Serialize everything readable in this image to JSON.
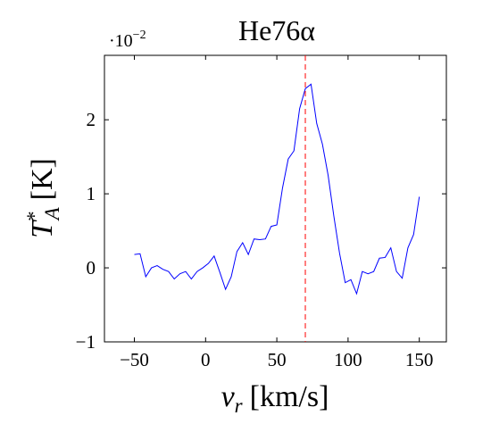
{
  "chart_data": {
    "type": "line",
    "title": "He76α",
    "x_label": {
      "base": "v",
      "sub": "r",
      "unit": "[km/s]"
    },
    "y_label": {
      "base": "T",
      "sup": "*",
      "sub": "A",
      "unit": "[K]"
    },
    "y_scale_label": {
      "base": "·10",
      "sup": "−2"
    },
    "x": [
      -50,
      -46,
      -42,
      -38,
      -34,
      -30,
      -26,
      -22,
      -18,
      -14,
      -10,
      -6,
      -2,
      2,
      6,
      10,
      14,
      18,
      22,
      26,
      30,
      34,
      38,
      42,
      46,
      50,
      54,
      58,
      62,
      66,
      70,
      74,
      78,
      82,
      86,
      90,
      94,
      98,
      102,
      106,
      110,
      114,
      118,
      122,
      126,
      130,
      134,
      138,
      142,
      146,
      150
    ],
    "series": [
      {
        "name": "He76α",
        "color": "#0000ff",
        "values": [
          0.18,
          0.19,
          -0.12,
          0,
          0.03,
          -0.02,
          -0.05,
          -0.15,
          -0.08,
          -0.05,
          -0.15,
          -0.05,
          0,
          0.06,
          0.16,
          -0.06,
          -0.29,
          -0.12,
          0.22,
          0.34,
          0.18,
          0.39,
          0.38,
          0.39,
          0.56,
          0.58,
          1.08,
          1.47,
          1.58,
          2.15,
          2.42,
          2.48,
          1.95,
          1.67,
          1.25,
          0.7,
          0.2,
          -0.2,
          -0.16,
          -0.35,
          -0.05,
          -0.08,
          -0.05,
          0.13,
          0.14,
          0.27,
          -0.05,
          -0.14,
          0.27,
          0.45,
          0.96
        ]
      }
    ],
    "vline": {
      "x": 70,
      "color": "#ff0000"
    },
    "xlim": [
      -71,
      169
    ],
    "ylim": [
      -1,
      2.87
    ],
    "xticks": [
      {
        "value": -50,
        "label": "−50"
      },
      0,
      50,
      100,
      150
    ],
    "yticks": [
      {
        "value": -1,
        "label": "−1"
      },
      0,
      1,
      2
    ]
  }
}
